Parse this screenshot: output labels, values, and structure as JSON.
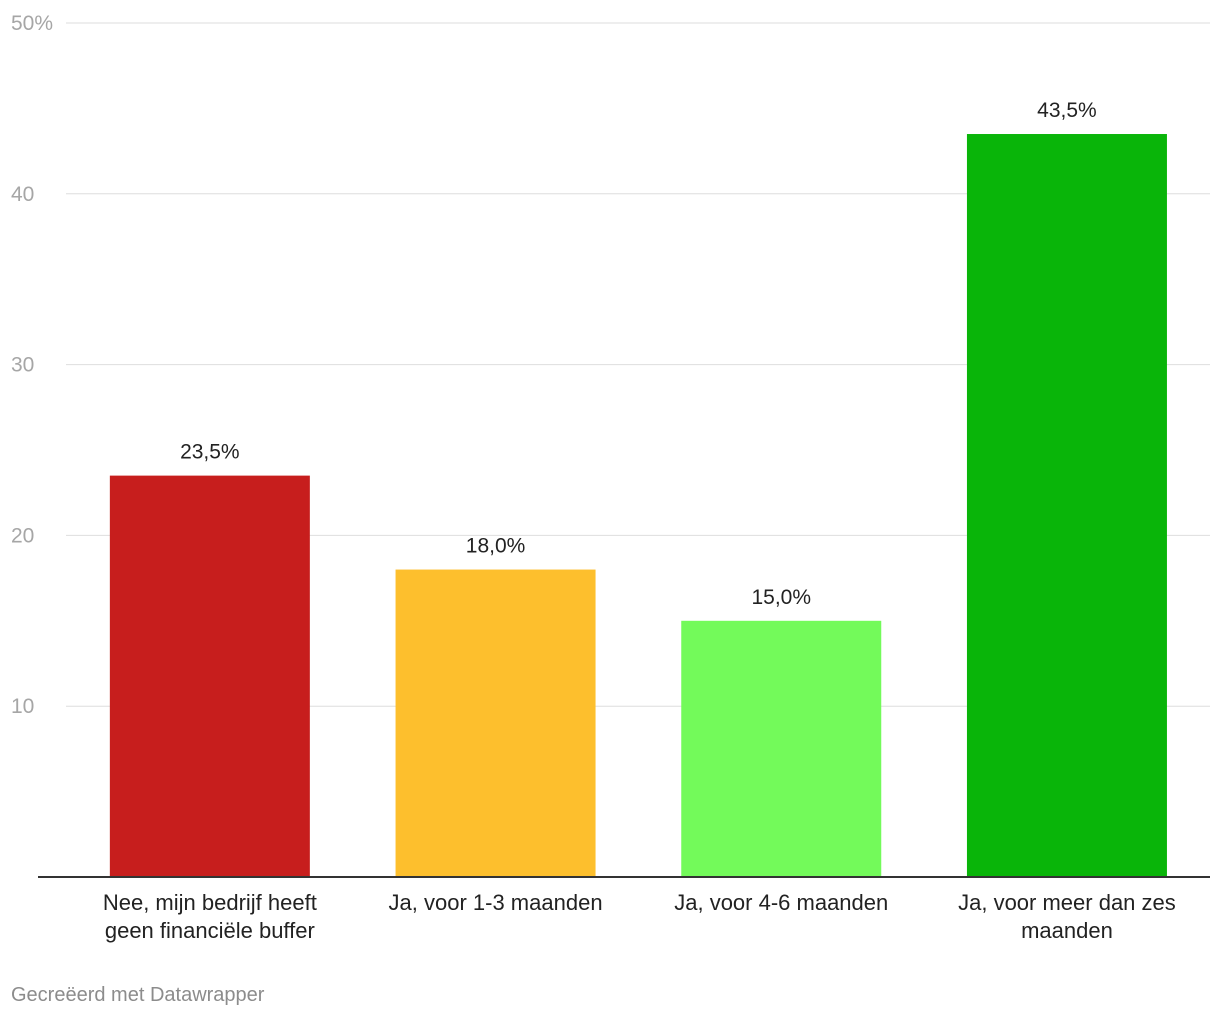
{
  "chart_data": {
    "type": "bar",
    "categories": [
      [
        "Nee, mijn bedrijf heeft",
        "geen financiële buffer"
      ],
      [
        "Ja, voor 1-3 maanden"
      ],
      [
        "Ja, voor 4-6 maanden"
      ],
      [
        "Ja, voor meer dan zes",
        "maanden"
      ]
    ],
    "values": [
      23.5,
      18.0,
      15.0,
      43.5
    ],
    "value_labels": [
      "23,5%",
      "18,0%",
      "15,0%",
      "43,5%"
    ],
    "colors": [
      "#c71e1d",
      "#fdbf2d",
      "#73fa5a",
      "#09b509"
    ],
    "ylim": [
      0,
      50
    ],
    "yticks": [
      10,
      20,
      30,
      40,
      50
    ],
    "ytick_labels": [
      "10",
      "20",
      "30",
      "40",
      "50%"
    ],
    "grid": true,
    "title": "",
    "xlabel": "",
    "ylabel": ""
  },
  "footer": {
    "credit": "Gecreëerd met Datawrapper"
  }
}
